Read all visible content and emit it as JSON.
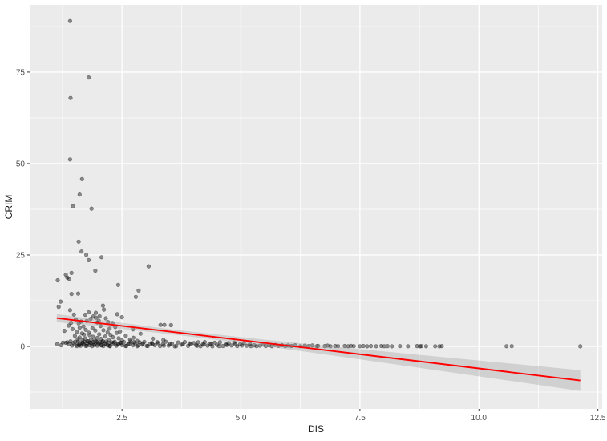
{
  "chart_data": {
    "type": "scatter",
    "title": "",
    "xlabel": "DIS",
    "ylabel": "CRIM",
    "xlim": [
      0.56,
      12.59
    ],
    "ylim": [
      -17.1,
      93.4
    ],
    "grid": "on",
    "legend": "none",
    "x_ticks": {
      "values": [
        2.5,
        5.0,
        7.5,
        10.0,
        12.5
      ],
      "labels": [
        "2.5",
        "5.0",
        "7.5",
        "10.0",
        "12.5"
      ]
    },
    "y_ticks": {
      "values": [
        0,
        25,
        50,
        75
      ],
      "labels": [
        "0",
        "25",
        "50",
        "75"
      ]
    },
    "x_minor": [
      1.25,
      3.75,
      6.25,
      8.75,
      11.25
    ],
    "y_minor": [
      -12.5,
      12.5,
      37.5,
      62.5,
      87.5
    ],
    "theme": {
      "panel_bg": "#EBEBEB",
      "grid_major": "#FFFFFF",
      "grid_minor": "#FFFFFF",
      "point_color": "#000000",
      "point_opacity": 0.42,
      "smooth_color": "#FF0000",
      "ribbon_color": "#9E9E9E",
      "ribbon_opacity": 0.35,
      "axis_text_color": "#4D4D4D",
      "axis_title_color": "#1A1A1A",
      "tick_color": "#333333"
    },
    "smooth": {
      "line": [
        [
          1.13,
          7.74
        ],
        [
          12.13,
          -9.34
        ]
      ],
      "ribbon": [
        [
          1.13,
          6.62,
          8.86
        ],
        [
          2.0,
          5.45,
          7.33
        ],
        [
          3.0,
          4.08,
          5.58
        ],
        [
          3.8,
          2.9,
          4.28
        ],
        [
          5.0,
          0.93,
          2.53
        ],
        [
          6.0,
          -0.82,
          1.18
        ],
        [
          7.0,
          -2.63,
          -0.11
        ],
        [
          8.0,
          -4.48,
          -1.38
        ],
        [
          9.0,
          -6.33,
          -2.63
        ],
        [
          10.0,
          -8.2,
          -3.86
        ],
        [
          11.0,
          -10.06,
          -5.1
        ],
        [
          12.13,
          -12.18,
          -6.5
        ]
      ]
    },
    "points": [
      [
        1.41,
        88.98
      ],
      [
        1.8,
        73.53
      ],
      [
        1.42,
        67.92
      ],
      [
        1.41,
        51.14
      ],
      [
        1.66,
        45.75
      ],
      [
        1.61,
        41.53
      ],
      [
        1.47,
        38.35
      ],
      [
        1.86,
        37.66
      ],
      [
        1.59,
        28.66
      ],
      [
        1.65,
        25.94
      ],
      [
        1.75,
        25.05
      ],
      [
        2.07,
        24.39
      ],
      [
        1.8,
        23.6
      ],
      [
        3.06,
        21.9
      ],
      [
        1.94,
        20.72
      ],
      [
        1.44,
        20.08
      ],
      [
        1.32,
        19.61
      ],
      [
        1.35,
        18.81
      ],
      [
        1.39,
        18.5
      ],
      [
        1.15,
        18.08
      ],
      [
        2.42,
        16.81
      ],
      [
        2.85,
        15.29
      ],
      [
        1.58,
        14.42
      ],
      [
        1.44,
        14.33
      ],
      [
        2.79,
        13.52
      ],
      [
        1.21,
        12.25
      ],
      [
        2.1,
        11.16
      ],
      [
        1.17,
        10.83
      ],
      [
        2.12,
        10.06
      ],
      [
        1.41,
        9.92
      ],
      [
        1.8,
        9.33
      ],
      [
        1.95,
        9.19
      ],
      [
        2.4,
        8.79
      ],
      [
        1.49,
        8.71
      ],
      [
        1.73,
        8.64
      ],
      [
        2.03,
        8.24
      ],
      [
        1.9,
        8.2
      ],
      [
        2.5,
        7.99
      ],
      [
        1.95,
        7.87
      ],
      [
        2.16,
        7.67
      ],
      [
        1.84,
        7.52
      ],
      [
        1.53,
        7.4
      ],
      [
        2.01,
        7.05
      ],
      [
        1.76,
        6.96
      ],
      [
        1.64,
        6.8
      ],
      [
        2.21,
        6.65
      ],
      [
        1.98,
        6.53
      ],
      [
        1.43,
        6.44
      ],
      [
        2.3,
        6.39
      ],
      [
        1.59,
        6.29
      ],
      [
        3.31,
        5.87
      ],
      [
        3.39,
        5.88
      ],
      [
        3.53,
        5.82
      ],
      [
        1.38,
        5.7
      ],
      [
        2.05,
        5.58
      ],
      [
        1.69,
        5.44
      ],
      [
        2.36,
        5.29
      ],
      [
        1.61,
        5.09
      ],
      [
        1.88,
        4.98
      ],
      [
        2.24,
        4.87
      ],
      [
        1.46,
        4.75
      ],
      [
        2.73,
        4.64
      ],
      [
        1.74,
        4.55
      ],
      [
        2.11,
        4.42
      ],
      [
        1.94,
        4.35
      ],
      [
        1.29,
        4.26
      ],
      [
        2.46,
        4.1
      ],
      [
        1.55,
        3.97
      ],
      [
        2.2,
        3.84
      ],
      [
        1.8,
        3.77
      ],
      [
        2.39,
        3.69
      ],
      [
        1.66,
        3.56
      ],
      [
        2.89,
        3.47
      ],
      [
        2.02,
        3.32
      ],
      [
        1.7,
        3.24
      ],
      [
        2.26,
        3.16
      ],
      [
        1.82,
        3.08
      ],
      [
        2.58,
        2.92
      ],
      [
        1.51,
        2.87
      ],
      [
        2.15,
        2.73
      ],
      [
        1.89,
        2.64
      ],
      [
        2.31,
        2.5
      ],
      [
        1.61,
        2.44
      ],
      [
        2.74,
        2.37
      ],
      [
        1.98,
        2.31
      ],
      [
        2.43,
        2.24
      ],
      [
        1.73,
        2.18
      ],
      [
        3.15,
        2.1
      ],
      [
        2.06,
        2.06
      ],
      [
        1.57,
        1.98
      ],
      [
        2.67,
        1.91
      ],
      [
        1.85,
        1.87
      ],
      [
        2.22,
        1.8
      ],
      [
        3.37,
        1.76
      ],
      [
        1.67,
        1.69
      ],
      [
        2.5,
        1.62
      ],
      [
        1.93,
        1.58
      ],
      [
        2.82,
        1.51
      ],
      [
        2.1,
        1.46
      ],
      [
        1.77,
        1.41
      ],
      [
        1.14,
        0.63
      ],
      [
        1.22,
        0.32
      ],
      [
        1.26,
        1.05
      ],
      [
        1.32,
        0.98
      ],
      [
        1.35,
        1.13
      ],
      [
        1.39,
        0.63
      ],
      [
        1.42,
        1.39
      ],
      [
        1.45,
        0.25
      ],
      [
        1.48,
        0.89
      ],
      [
        1.51,
        1.22
      ],
      [
        1.54,
        0.45
      ],
      [
        1.55,
        0.08
      ],
      [
        1.58,
        1.35
      ],
      [
        1.61,
        0.71
      ],
      [
        1.63,
        0.18
      ],
      [
        1.66,
        1.05
      ],
      [
        1.69,
        0.52
      ],
      [
        1.71,
        1.28
      ],
      [
        1.74,
        0.14
      ],
      [
        1.77,
        0.83
      ],
      [
        1.79,
        1.42
      ],
      [
        1.82,
        0.36
      ],
      [
        1.85,
        0.95
      ],
      [
        1.87,
        0.06
      ],
      [
        1.9,
        1.18
      ],
      [
        1.93,
        0.59
      ],
      [
        1.96,
        1.31
      ],
      [
        1.98,
        0.22
      ],
      [
        2.01,
        0.78
      ],
      [
        2.04,
        1.09
      ],
      [
        2.06,
        0.41
      ],
      [
        2.09,
        1.24
      ],
      [
        2.11,
        0.11
      ],
      [
        2.14,
        0.68
      ],
      [
        2.17,
        1.37
      ],
      [
        2.2,
        0.31
      ],
      [
        2.23,
        0.91
      ],
      [
        2.25,
        0.05
      ],
      [
        2.28,
        1.15
      ],
      [
        2.31,
        0.55
      ],
      [
        2.35,
        1.27
      ],
      [
        2.38,
        0.19
      ],
      [
        2.42,
        0.75
      ],
      [
        2.46,
        1.02
      ],
      [
        2.5,
        0.38
      ],
      [
        2.54,
        1.2
      ],
      [
        2.59,
        0.09
      ],
      [
        2.63,
        0.65
      ],
      [
        2.68,
        1.33
      ],
      [
        2.73,
        0.28
      ],
      [
        2.77,
        0.87
      ],
      [
        2.82,
        0.04
      ],
      [
        2.87,
        1.11
      ],
      [
        2.92,
        0.49
      ],
      [
        2.97,
        1.25
      ],
      [
        3.02,
        0.16
      ],
      [
        3.08,
        0.72
      ],
      [
        3.13,
        0.99
      ],
      [
        3.19,
        0.34
      ],
      [
        3.24,
        1.17
      ],
      [
        3.3,
        0.07
      ],
      [
        3.36,
        0.61
      ],
      [
        3.42,
        1.3
      ],
      [
        3.48,
        0.24
      ],
      [
        3.55,
        0.81
      ],
      [
        3.61,
        0.03
      ],
      [
        3.68,
        1.07
      ],
      [
        3.75,
        0.46
      ],
      [
        3.82,
        1.21
      ],
      [
        3.89,
        0.13
      ],
      [
        3.95,
        0.69
      ],
      [
        4.01,
        0.93
      ],
      [
        4.06,
        0.29
      ],
      [
        4.1,
        1.12
      ],
      [
        4.15,
        0.05
      ],
      [
        4.2,
        0.57
      ],
      [
        4.24,
        1.18
      ],
      [
        4.3,
        0.21
      ],
      [
        4.35,
        0.77
      ],
      [
        4.4,
        0.02
      ],
      [
        4.45,
        1.03
      ],
      [
        4.5,
        0.43
      ],
      [
        4.56,
        1.14
      ],
      [
        4.62,
        0.1
      ],
      [
        4.68,
        0.63
      ],
      [
        4.74,
        0.88
      ],
      [
        4.8,
        0.26
      ],
      [
        4.86,
        1.08
      ],
      [
        4.92,
        0.06
      ],
      [
        4.98,
        0.52
      ],
      [
        5.06,
        0.93
      ],
      [
        5.12,
        0.17
      ],
      [
        5.19,
        0.66
      ],
      [
        1.6,
        0.33
      ],
      [
        1.68,
        0.92
      ],
      [
        1.76,
        0.2
      ],
      [
        1.83,
        1.01
      ],
      [
        1.91,
        0.4
      ],
      [
        1.99,
        1.16
      ],
      [
        2.07,
        0.27
      ],
      [
        2.16,
        0.85
      ],
      [
        2.24,
        0.13
      ],
      [
        2.33,
        1.05
      ],
      [
        2.41,
        0.48
      ],
      [
        2.49,
        0.96
      ],
      [
        2.57,
        0.15
      ],
      [
        2.66,
        0.74
      ],
      [
        2.75,
        1.19
      ],
      [
        2.84,
        0.32
      ],
      [
        2.94,
        0.8
      ],
      [
        3.04,
        0.12
      ],
      [
        3.14,
        0.58
      ],
      [
        3.26,
        0.9
      ],
      [
        3.38,
        0.23
      ],
      [
        3.51,
        0.7
      ],
      [
        3.64,
        0.08
      ],
      [
        3.78,
        0.54
      ],
      [
        3.92,
        0.84
      ],
      [
        4.08,
        0.18
      ],
      [
        4.22,
        0.47
      ],
      [
        4.38,
        0.73
      ],
      [
        4.54,
        0.09
      ],
      [
        4.7,
        0.37
      ],
      [
        4.88,
        0.6
      ],
      [
        5.02,
        0.24
      ],
      [
        5.21,
        0.08
      ],
      [
        5.28,
        0.31
      ],
      [
        5.33,
        0.06
      ],
      [
        5.4,
        0.22
      ],
      [
        5.46,
        0.48
      ],
      [
        5.52,
        0.1
      ],
      [
        5.59,
        0.29
      ],
      [
        5.65,
        0.05
      ],
      [
        5.72,
        0.4
      ],
      [
        5.79,
        0.16
      ],
      [
        5.86,
        0.34
      ],
      [
        5.93,
        0.07
      ],
      [
        5.99,
        0.25
      ],
      [
        6.06,
        0.11
      ],
      [
        6.14,
        0.3
      ],
      [
        6.25,
        0.05
      ],
      [
        6.34,
        0.19
      ],
      [
        6.42,
        0.09
      ],
      [
        6.5,
        0.27
      ],
      [
        6.59,
        0.04
      ],
      [
        6.62,
        0.14
      ],
      [
        6.76,
        0.08
      ],
      [
        6.82,
        0.21
      ],
      [
        6.88,
        0.05
      ],
      [
        6.98,
        0.12
      ],
      [
        7.04,
        0.06
      ],
      [
        7.18,
        0.1
      ],
      [
        7.25,
        0.04
      ],
      [
        7.31,
        0.15
      ],
      [
        7.37,
        0.07
      ],
      [
        7.5,
        0.05
      ],
      [
        7.57,
        0.11
      ],
      [
        7.65,
        0.03
      ],
      [
        7.73,
        0.09
      ],
      [
        7.84,
        0.05
      ],
      [
        7.95,
        0.12
      ],
      [
        8.01,
        0.04
      ],
      [
        8.08,
        0.07
      ],
      [
        8.17,
        0.03
      ],
      [
        8.34,
        0.06
      ],
      [
        8.51,
        0.04
      ],
      [
        8.7,
        0.08
      ],
      [
        8.76,
        0.03
      ],
      [
        8.79,
        0.06
      ],
      [
        8.89,
        0.04
      ],
      [
        9.08,
        0.05
      ],
      [
        9.17,
        0.03
      ],
      [
        9.22,
        0.06
      ],
      [
        10.58,
        0.04
      ],
      [
        10.69,
        0.06
      ],
      [
        12.13,
        0.03
      ]
    ]
  }
}
